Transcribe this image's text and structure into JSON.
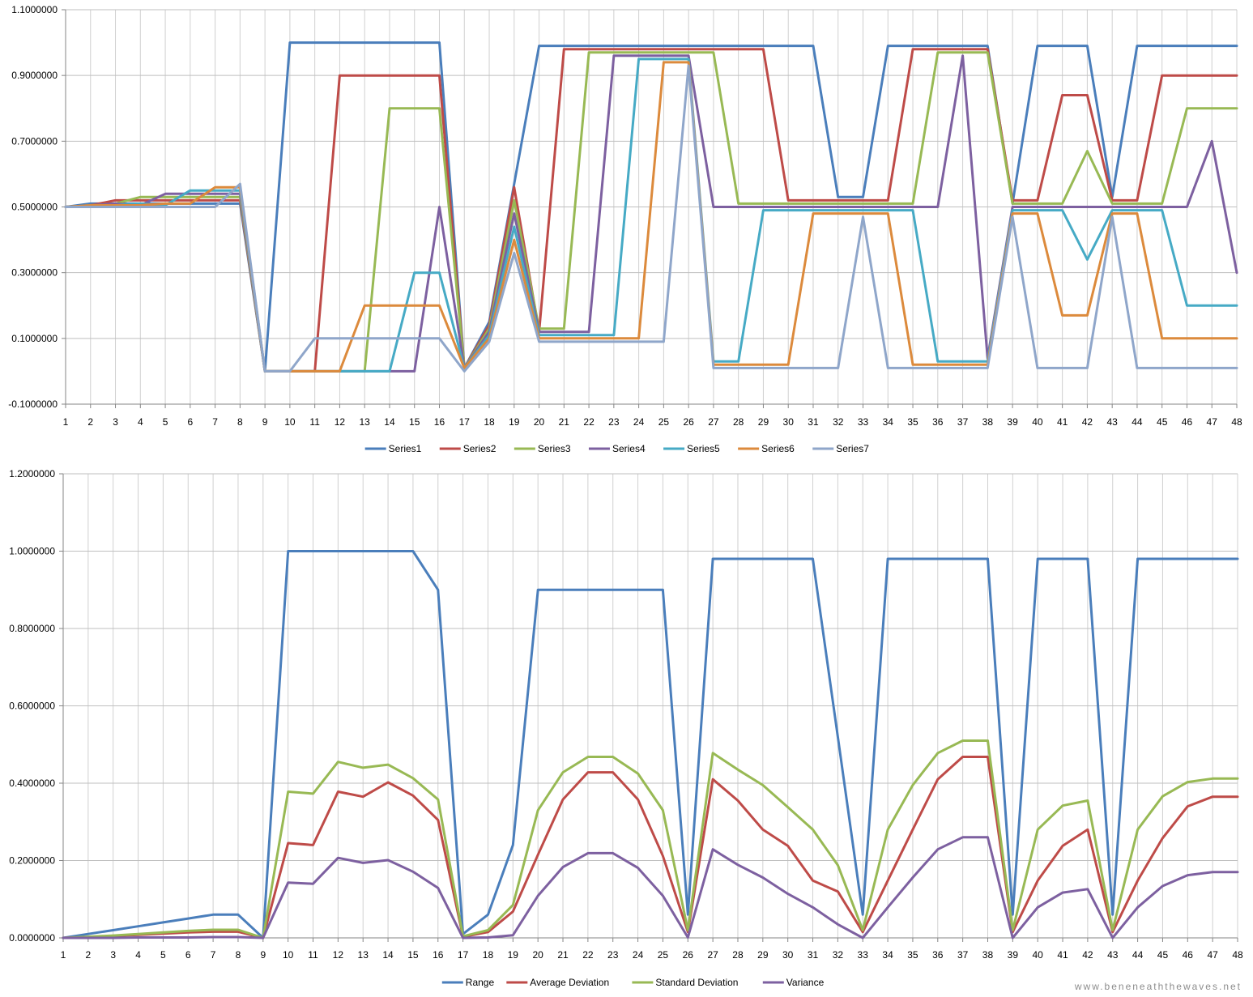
{
  "watermark": "www.beneneaththewaves.net",
  "chart_data": [
    {
      "type": "line",
      "x": [
        1,
        2,
        3,
        4,
        5,
        6,
        7,
        8,
        9,
        10,
        11,
        12,
        13,
        14,
        15,
        16,
        17,
        18,
        19,
        20,
        21,
        22,
        23,
        24,
        25,
        26,
        27,
        28,
        29,
        30,
        31,
        32,
        33,
        34,
        35,
        36,
        37,
        38,
        39,
        40,
        41,
        42,
        43,
        44,
        45,
        46,
        47,
        48
      ],
      "ylim": [
        -0.1,
        1.1
      ],
      "yticks": [
        -0.1,
        0.1,
        0.3,
        0.5,
        0.7,
        0.9,
        1.1
      ],
      "ytick_labels": [
        "-0.1000000",
        "0.1000000",
        "0.3000000",
        "0.5000000",
        "0.7000000",
        "0.9000000",
        "1.1000000"
      ],
      "grid": true,
      "legend_position": "bottom",
      "series": [
        {
          "name": "Series1",
          "color": "#4a7ebb",
          "values": [
            0.5,
            0.51,
            0.51,
            0.51,
            0.51,
            0.51,
            0.51,
            0.51,
            0,
            1,
            1,
            1,
            1,
            1,
            1,
            1,
            0.01,
            0.15,
            0.57,
            0.99,
            0.99,
            0.99,
            0.99,
            0.99,
            0.99,
            0.99,
            0.99,
            0.99,
            0.99,
            0.99,
            0.99,
            0.53,
            0.53,
            0.99,
            0.99,
            0.99,
            0.99,
            0.99,
            0.51,
            0.99,
            0.99,
            0.99,
            0.53,
            0.99,
            0.99,
            0.99,
            0.99,
            0.99
          ]
        },
        {
          "name": "Series2",
          "color": "#be4b48",
          "values": [
            0.5,
            0.505,
            0.52,
            0.52,
            0.52,
            0.52,
            0.52,
            0.52,
            0,
            0,
            0,
            0.9,
            0.9,
            0.9,
            0.9,
            0.9,
            0.01,
            0.14,
            0.56,
            0.12,
            0.98,
            0.98,
            0.98,
            0.98,
            0.98,
            0.98,
            0.98,
            0.98,
            0.98,
            0.52,
            0.52,
            0.52,
            0.52,
            0.52,
            0.98,
            0.98,
            0.98,
            0.98,
            0.52,
            0.52,
            0.84,
            0.84,
            0.52,
            0.52,
            0.9,
            0.9,
            0.9,
            0.9
          ]
        },
        {
          "name": "Series3",
          "color": "#98b954",
          "values": [
            0.5,
            0.505,
            0.51,
            0.53,
            0.53,
            0.53,
            0.53,
            0.53,
            0,
            0,
            0,
            0,
            0,
            0.8,
            0.8,
            0.8,
            0.01,
            0.13,
            0.52,
            0.13,
            0.13,
            0.97,
            0.97,
            0.97,
            0.97,
            0.97,
            0.97,
            0.51,
            0.51,
            0.51,
            0.51,
            0.51,
            0.51,
            0.51,
            0.51,
            0.97,
            0.97,
            0.97,
            0.51,
            0.51,
            0.51,
            0.67,
            0.51,
            0.51,
            0.51,
            0.8,
            0.8,
            0.8
          ]
        },
        {
          "name": "Series4",
          "color": "#7d60a0",
          "values": [
            0.5,
            0.505,
            0.51,
            0.505,
            0.54,
            0.54,
            0.54,
            0.54,
            0,
            0,
            0,
            0,
            0,
            0,
            0,
            0.5,
            0.01,
            0.12,
            0.48,
            0.12,
            0.12,
            0.12,
            0.96,
            0.96,
            0.96,
            0.96,
            0.5,
            0.5,
            0.5,
            0.5,
            0.5,
            0.5,
            0.5,
            0.5,
            0.5,
            0.5,
            0.96,
            0.04,
            0.5,
            0.5,
            0.5,
            0.5,
            0.5,
            0.5,
            0.5,
            0.5,
            0.7,
            0.3
          ]
        },
        {
          "name": "Series5",
          "color": "#46aac5",
          "values": [
            0.5,
            0.505,
            0.505,
            0.51,
            0.505,
            0.55,
            0.55,
            0.55,
            0,
            0,
            0,
            0,
            0,
            0,
            0.3,
            0.3,
            0.01,
            0.11,
            0.44,
            0.11,
            0.11,
            0.11,
            0.11,
            0.95,
            0.95,
            0.95,
            0.03,
            0.03,
            0.49,
            0.49,
            0.49,
            0.49,
            0.49,
            0.49,
            0.49,
            0.03,
            0.03,
            0.03,
            0.49,
            0.49,
            0.49,
            0.34,
            0.49,
            0.49,
            0.49,
            0.2,
            0.2,
            0.2
          ]
        },
        {
          "name": "Series6",
          "color": "#dc8a3c",
          "values": [
            0.5,
            0.505,
            0.505,
            0.505,
            0.51,
            0.51,
            0.56,
            0.56,
            0,
            0,
            0,
            0,
            0.2,
            0.2,
            0.2,
            0.2,
            0.01,
            0.1,
            0.4,
            0.1,
            0.1,
            0.1,
            0.1,
            0.1,
            0.94,
            0.94,
            0.02,
            0.02,
            0.02,
            0.02,
            0.48,
            0.48,
            0.48,
            0.48,
            0.02,
            0.02,
            0.02,
            0.02,
            0.48,
            0.48,
            0.17,
            0.17,
            0.48,
            0.48,
            0.1,
            0.1,
            0.1,
            0.1
          ]
        },
        {
          "name": "Series7",
          "color": "#8fa6ca",
          "values": [
            0.5,
            0.5,
            0.5,
            0.5,
            0.5,
            0.5,
            0.5,
            0.57,
            0,
            0,
            0.1,
            0.1,
            0.1,
            0.1,
            0.1,
            0.1,
            0,
            0.09,
            0.36,
            0.09,
            0.09,
            0.09,
            0.09,
            0.09,
            0.09,
            0.93,
            0.01,
            0.01,
            0.01,
            0.01,
            0.01,
            0.01,
            0.47,
            0.01,
            0.01,
            0.01,
            0.01,
            0.01,
            0.47,
            0.01,
            0.01,
            0.01,
            0.47,
            0.01,
            0.01,
            0.01,
            0.01,
            0.01
          ]
        }
      ]
    },
    {
      "type": "line",
      "x": [
        1,
        2,
        3,
        4,
        5,
        6,
        7,
        8,
        9,
        10,
        11,
        12,
        13,
        14,
        15,
        16,
        17,
        18,
        19,
        20,
        21,
        22,
        23,
        24,
        25,
        26,
        27,
        28,
        29,
        30,
        31,
        32,
        33,
        34,
        35,
        36,
        37,
        38,
        39,
        40,
        41,
        42,
        43,
        44,
        45,
        46,
        47,
        48
      ],
      "ylim": [
        0,
        1.2
      ],
      "yticks": [
        0,
        0.2,
        0.4,
        0.6,
        0.8,
        1.0,
        1.2
      ],
      "ytick_labels": [
        "0.0000000",
        "0.2000000",
        "0.4000000",
        "0.6000000",
        "0.8000000",
        "1.0000000",
        "1.2000000"
      ],
      "grid": true,
      "legend_position": "bottom",
      "series": [
        {
          "name": "Range",
          "color": "#4a7ebb",
          "values": [
            0,
            0.01,
            0.02,
            0.03,
            0.04,
            0.05,
            0.06,
            0.06,
            0,
            1,
            1,
            1,
            1,
            1,
            1,
            0.9,
            0.01,
            0.06,
            0.24,
            0.9,
            0.9,
            0.9,
            0.9,
            0.9,
            0.9,
            0.06,
            0.98,
            0.98,
            0.98,
            0.98,
            0.98,
            0.52,
            0.06,
            0.98,
            0.98,
            0.98,
            0.98,
            0.98,
            0.06,
            0.98,
            0.98,
            0.98,
            0.06,
            0.98,
            0.98,
            0.98,
            0.98,
            0.98
          ]
        },
        {
          "name": "Average Deviation",
          "color": "#be4b48",
          "values": [
            0,
            0.002,
            0.005,
            0.008,
            0.011,
            0.014,
            0.016,
            0.016,
            0,
            0.245,
            0.24,
            0.378,
            0.365,
            0.402,
            0.368,
            0.305,
            0.003,
            0.015,
            0.068,
            0.215,
            0.358,
            0.428,
            0.428,
            0.358,
            0.212,
            0.015,
            0.41,
            0.355,
            0.28,
            0.238,
            0.148,
            0.12,
            0.015,
            0.148,
            0.28,
            0.41,
            0.468,
            0.468,
            0.015,
            0.148,
            0.238,
            0.28,
            0.015,
            0.148,
            0.258,
            0.34,
            0.365,
            0.365
          ]
        },
        {
          "name": "Standard Deviation",
          "color": "#98b954",
          "values": [
            0,
            0.003,
            0.006,
            0.01,
            0.014,
            0.018,
            0.021,
            0.021,
            0,
            0.378,
            0.373,
            0.455,
            0.44,
            0.448,
            0.413,
            0.358,
            0.004,
            0.02,
            0.085,
            0.33,
            0.428,
            0.468,
            0.468,
            0.425,
            0.33,
            0.02,
            0.478,
            0.435,
            0.395,
            0.338,
            0.28,
            0.188,
            0.02,
            0.28,
            0.395,
            0.478,
            0.51,
            0.51,
            0.02,
            0.28,
            0.342,
            0.355,
            0.02,
            0.28,
            0.366,
            0.403,
            0.412,
            0.412
          ]
        },
        {
          "name": "Variance",
          "color": "#7d60a0",
          "values": [
            0,
            0,
            0,
            0.001,
            0.001,
            0.001,
            0.002,
            0.002,
            0,
            0.143,
            0.14,
            0.207,
            0.194,
            0.201,
            0.171,
            0.129,
            0,
            0.001,
            0.007,
            0.109,
            0.183,
            0.219,
            0.219,
            0.181,
            0.109,
            0.001,
            0.229,
            0.189,
            0.156,
            0.114,
            0.079,
            0.035,
            0,
            0.079,
            0.156,
            0.229,
            0.26,
            0.26,
            0,
            0.079,
            0.117,
            0.126,
            0,
            0.079,
            0.134,
            0.162,
            0.17,
            0.17
          ]
        }
      ]
    }
  ]
}
